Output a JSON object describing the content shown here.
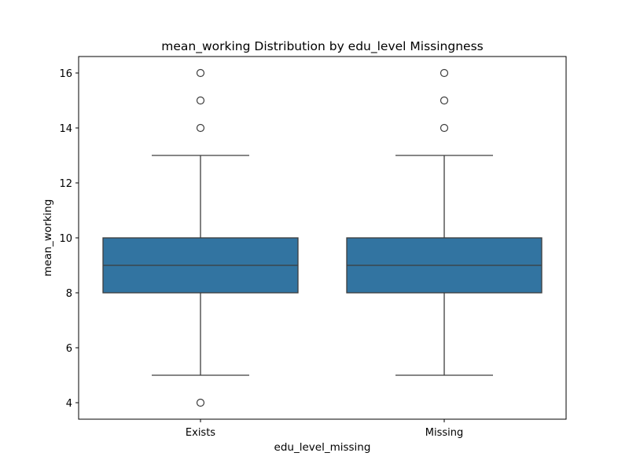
{
  "chart_data": {
    "type": "box",
    "title": "mean_working Distribution by edu_level Missingness",
    "xlabel": "edu_level_missing",
    "ylabel": "mean_working",
    "categories": [
      "Exists",
      "Missing"
    ],
    "ylim": [
      3.4,
      16.6
    ],
    "yticks": [
      4,
      6,
      8,
      10,
      12,
      14,
      16
    ],
    "box_color": "#3274a1",
    "line_color": "#3d3d3d",
    "grid": false,
    "boxes": [
      {
        "category": "Exists",
        "whisker_low": 5,
        "q1": 8,
        "median": 9,
        "q3": 10,
        "whisker_high": 13,
        "outliers": [
          4,
          14,
          15,
          16
        ]
      },
      {
        "category": "Missing",
        "whisker_low": 5,
        "q1": 8,
        "median": 9,
        "q3": 10,
        "whisker_high": 13,
        "outliers": [
          14,
          15,
          16
        ]
      }
    ]
  }
}
